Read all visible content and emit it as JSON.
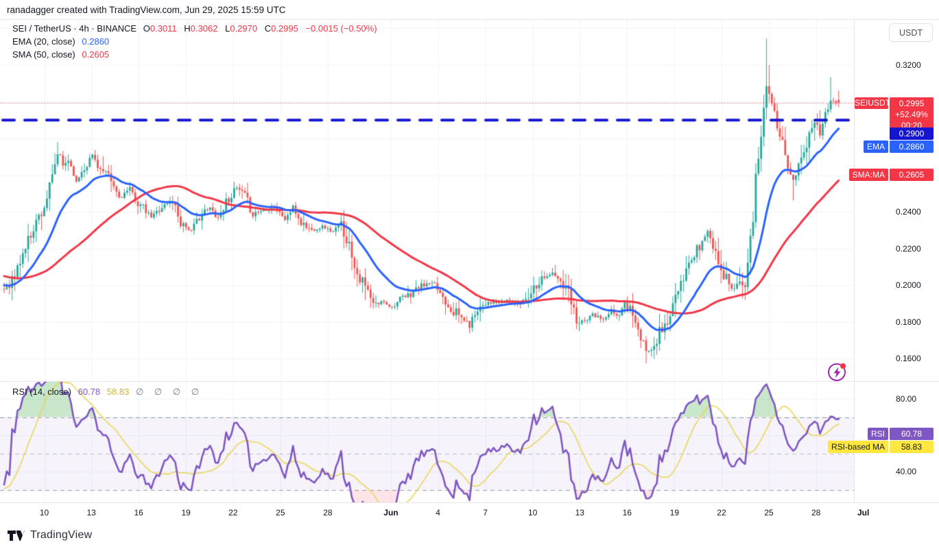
{
  "header": {
    "attribution": "ranadagger created with TradingView.com, Jun 29, 2025 15:59 UTC"
  },
  "legend": {
    "main": {
      "title": "SEI / TetherUS · 4h · BINANCE",
      "ohlc": [
        {
          "k": "O",
          "v": "0.3011"
        },
        {
          "k": "H",
          "v": "0.3062"
        },
        {
          "k": "L",
          "v": "0.2970"
        },
        {
          "k": "C",
          "v": "0.2995"
        }
      ],
      "change": "−0.0015 (−0.50%)"
    },
    "ema": {
      "label": "EMA (20, close)",
      "value": "0.2860"
    },
    "sma": {
      "label": "SMA (50, close)",
      "value": "0.2605"
    },
    "rsi": {
      "label": "RSI (14, close)",
      "value": "60.78",
      "ma_value": "58.83",
      "empty_slots": "∅ ∅ ∅ ∅"
    }
  },
  "price_axis": {
    "unit": "USDT"
  },
  "badges": {
    "symbol": {
      "tag": "SEIUSDT",
      "price": "0.2995",
      "change": "+52.49%",
      "countdown": "00:20"
    },
    "level": {
      "price": "0.2900"
    },
    "ema": {
      "tag": "EMA",
      "price": "0.2860"
    },
    "sma": {
      "tag": "SMA:MA",
      "price": "0.2605"
    },
    "rsi": {
      "tag": "RSI",
      "value": "60.78"
    },
    "rsi_ma": {
      "tag": "RSI-based MA",
      "value": "58.83"
    }
  },
  "footer": {
    "brand": "TradingView"
  },
  "colors": {
    "up": "#26a69a",
    "down": "#ef5350",
    "ema": "#2962ff",
    "sma": "#f23645",
    "dashed_level": "#1515cf",
    "dotted_price": "rgba(242,54,69,0.55)",
    "grid": "#f0f3fa",
    "rsi": "#7e57c2",
    "rsi_ma": "#e9d75a",
    "rsi_band_fill": "rgba(126,87,194,0.07)",
    "rsi_band_border": "#8e919c",
    "overbought_fill": "rgba(76,175,80,0.30)",
    "oversold_fill": "rgba(242,54,69,0.13)",
    "text": "#131722"
  },
  "chart_data": {
    "type": "candlestick",
    "title": "SEI / TetherUS 4h BINANCE with EMA(20), SMA(50) and RSI(14) panel",
    "interval": "4h",
    "price_scale": {
      "visible_range": [
        0.148,
        0.345
      ],
      "gridline_step": 0.02,
      "ticks": [
        {
          "label": "0.3200",
          "v": 0.32
        },
        {
          "label": "0.2400",
          "v": 0.24
        },
        {
          "label": "0.2200",
          "v": 0.22
        },
        {
          "label": "0.2000",
          "v": 0.2
        },
        {
          "label": "0.1800",
          "v": 0.18
        },
        {
          "label": "0.1600",
          "v": 0.16
        }
      ]
    },
    "levels": {
      "dashed_blue_line": 0.29,
      "current_price_dotted": 0.2995
    },
    "time_axis": {
      "ticks": [
        {
          "label": "10",
          "i": 15.0
        },
        {
          "label": "13",
          "i": 32.6
        },
        {
          "label": "16",
          "i": 50.3
        },
        {
          "label": "19",
          "i": 68.0
        },
        {
          "label": "22",
          "i": 85.6
        },
        {
          "label": "25",
          "i": 103.3
        },
        {
          "label": "28",
          "i": 121.0
        },
        {
          "label": "Jun",
          "i": 144.6,
          "bold": true
        },
        {
          "label": "4",
          "i": 162.2
        },
        {
          "label": "7",
          "i": 179.9
        },
        {
          "label": "10",
          "i": 197.6
        },
        {
          "label": "13",
          "i": 215.2
        },
        {
          "label": "16",
          "i": 232.9
        },
        {
          "label": "19",
          "i": 250.6
        },
        {
          "label": "22",
          "i": 268.2
        },
        {
          "label": "25",
          "i": 285.9
        },
        {
          "label": "28",
          "i": 303.5
        },
        {
          "label": "Jul",
          "i": 321.2,
          "bold": true
        }
      ]
    },
    "candles": {
      "n": 313,
      "seed": 11,
      "preroll_anchors": [
        [
          -60,
          0.22
        ],
        [
          -45,
          0.214
        ],
        [
          -30,
          0.206
        ],
        [
          -15,
          0.2
        ]
      ],
      "close_anchors": [
        [
          0,
          0.198
        ],
        [
          4,
          0.205
        ],
        [
          7,
          0.217
        ],
        [
          11,
          0.232
        ],
        [
          15,
          0.243
        ],
        [
          18,
          0.258
        ],
        [
          20,
          0.272
        ],
        [
          22,
          0.265
        ],
        [
          24,
          0.269
        ],
        [
          27,
          0.256
        ],
        [
          29,
          0.262
        ],
        [
          33,
          0.271
        ],
        [
          36,
          0.263
        ],
        [
          40,
          0.256
        ],
        [
          43,
          0.248
        ],
        [
          47,
          0.252
        ],
        [
          51,
          0.243
        ],
        [
          55,
          0.237
        ],
        [
          59,
          0.243
        ],
        [
          63,
          0.246
        ],
        [
          66,
          0.235
        ],
        [
          70,
          0.229
        ],
        [
          73,
          0.238
        ],
        [
          77,
          0.242
        ],
        [
          80,
          0.237
        ],
        [
          84,
          0.248
        ],
        [
          87,
          0.253
        ],
        [
          90,
          0.248
        ],
        [
          93,
          0.239
        ],
        [
          97,
          0.241
        ],
        [
          101,
          0.243
        ],
        [
          105,
          0.236
        ],
        [
          108,
          0.242
        ],
        [
          111,
          0.234
        ],
        [
          115,
          0.23
        ],
        [
          119,
          0.232
        ],
        [
          123,
          0.229
        ],
        [
          126,
          0.233
        ],
        [
          129,
          0.222
        ],
        [
          132,
          0.207
        ],
        [
          136,
          0.196
        ],
        [
          138,
          0.189
        ],
        [
          142,
          0.191
        ],
        [
          145,
          0.188
        ],
        [
          148,
          0.192
        ],
        [
          151,
          0.194
        ],
        [
          155,
          0.199
        ],
        [
          159,
          0.201
        ],
        [
          162,
          0.198
        ],
        [
          165,
          0.192
        ],
        [
          168,
          0.186
        ],
        [
          172,
          0.181
        ],
        [
          174,
          0.178
        ],
        [
          177,
          0.188
        ],
        [
          181,
          0.191
        ],
        [
          184,
          0.19
        ],
        [
          188,
          0.192
        ],
        [
          192,
          0.19
        ],
        [
          195,
          0.193
        ],
        [
          199,
          0.201
        ],
        [
          202,
          0.205
        ],
        [
          205,
          0.206
        ],
        [
          207,
          0.203
        ],
        [
          211,
          0.195
        ],
        [
          214,
          0.182
        ],
        [
          217,
          0.18
        ],
        [
          220,
          0.184
        ],
        [
          224,
          0.181
        ],
        [
          227,
          0.185
        ],
        [
          230,
          0.184
        ],
        [
          232,
          0.19
        ],
        [
          235,
          0.186
        ],
        [
          237,
          0.174
        ],
        [
          240,
          0.163
        ],
        [
          242,
          0.166
        ],
        [
          245,
          0.174
        ],
        [
          248,
          0.18
        ],
        [
          251,
          0.193
        ],
        [
          254,
          0.202
        ],
        [
          256,
          0.212
        ],
        [
          259,
          0.219
        ],
        [
          261,
          0.224
        ],
        [
          263,
          0.229
        ],
        [
          265,
          0.222
        ],
        [
          267,
          0.213
        ],
        [
          269,
          0.206
        ],
        [
          271,
          0.201
        ],
        [
          273,
          0.198
        ],
        [
          275,
          0.204
        ],
        [
          277,
          0.202
        ],
        [
          278,
          0.213
        ],
        [
          280,
          0.235
        ],
        [
          281,
          0.258
        ],
        [
          283,
          0.282
        ],
        [
          284,
          0.296
        ],
        [
          285,
          0.312
        ],
        [
          286,
          0.305
        ],
        [
          288,
          0.293
        ],
        [
          289,
          0.284
        ],
        [
          291,
          0.276
        ],
        [
          292,
          0.27
        ],
        [
          294,
          0.262
        ],
        [
          295,
          0.258
        ],
        [
          297,
          0.264
        ],
        [
          298,
          0.272
        ],
        [
          300,
          0.278
        ],
        [
          302,
          0.284
        ],
        [
          303,
          0.292
        ],
        [
          305,
          0.285
        ],
        [
          306,
          0.29
        ],
        [
          308,
          0.296
        ],
        [
          309,
          0.304
        ],
        [
          311,
          0.301
        ],
        [
          312,
          0.2995
        ]
      ],
      "wick_overrides": [
        {
          "i": 20,
          "h": 0.278
        },
        {
          "i": 126,
          "h": 0.239
        },
        {
          "i": 240,
          "l": 0.1573
        },
        {
          "i": 285,
          "h": 0.3345
        },
        {
          "i": 286,
          "h": 0.32
        },
        {
          "i": 295,
          "l": 0.2462
        },
        {
          "i": 309,
          "h": 0.3135
        }
      ],
      "last_candle": {
        "o": 0.3011,
        "h": 0.3062,
        "l": 0.297,
        "c": 0.2995
      }
    },
    "overlays": {
      "ema_period": 20,
      "sma_period": 50,
      "ema_last": 0.286,
      "sma_last": 0.2605
    },
    "rsi": {
      "period": 14,
      "ma_period": 14,
      "levels": {
        "overbought": 70,
        "middle": 50,
        "oversold": 30
      },
      "ticks": [
        {
          "label": "80.00",
          "v": 80
        },
        {
          "label": "40.00",
          "v": 40
        }
      ],
      "last": 60.78,
      "ma_last": 58.83
    }
  }
}
